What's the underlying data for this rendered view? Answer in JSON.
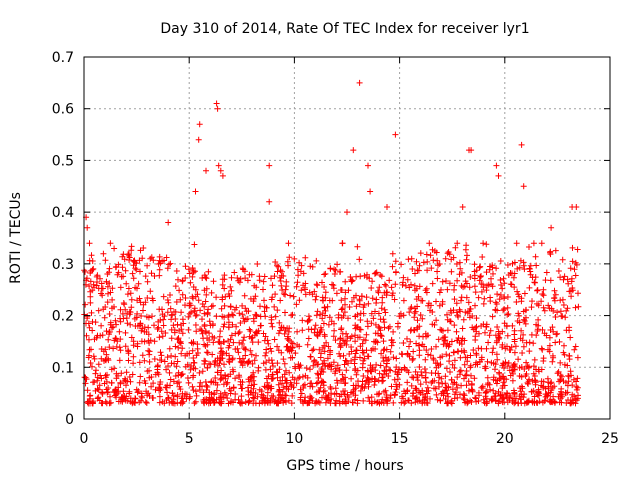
{
  "chart_data": {
    "type": "scatter",
    "title": "Day 310 of 2014, Rate Of TEC Index for receiver lyr1",
    "xlabel": "GPS time / hours",
    "ylabel": "ROTI / TECUs",
    "xlim": [
      0,
      25
    ],
    "ylim": [
      0,
      0.7
    ],
    "grid": true,
    "marker": "+",
    "color": "#ff0000",
    "x_ticks": [
      0,
      5,
      10,
      15,
      20,
      25
    ],
    "x_tick_labels": [
      "0",
      "5",
      "10",
      "15",
      "20",
      "25"
    ],
    "y_ticks": [
      0,
      0.1,
      0.2,
      0.3,
      0.4,
      0.5,
      0.6,
      0.7
    ],
    "y_tick_labels": [
      "0",
      "0.1",
      "0.2",
      "0.3",
      "0.4",
      "0.5",
      "0.6",
      "0.7"
    ],
    "series": [
      {
        "name": "ROTI",
        "x_range": [
          0,
          23.5
        ],
        "typical_range": [
          0.03,
          0.25
        ],
        "peaks": [
          {
            "x": 0.1,
            "y": 0.39
          },
          {
            "x": 0.15,
            "y": 0.37
          },
          {
            "x": 4.0,
            "y": 0.38
          },
          {
            "x": 5.3,
            "y": 0.44
          },
          {
            "x": 5.5,
            "y": 0.57
          },
          {
            "x": 5.45,
            "y": 0.54
          },
          {
            "x": 5.8,
            "y": 0.48
          },
          {
            "x": 6.3,
            "y": 0.61
          },
          {
            "x": 6.35,
            "y": 0.6
          },
          {
            "x": 6.4,
            "y": 0.49
          },
          {
            "x": 6.5,
            "y": 0.48
          },
          {
            "x": 6.6,
            "y": 0.47
          },
          {
            "x": 8.8,
            "y": 0.49
          },
          {
            "x": 8.8,
            "y": 0.42
          },
          {
            "x": 12.5,
            "y": 0.4
          },
          {
            "x": 12.8,
            "y": 0.52
          },
          {
            "x": 13.1,
            "y": 0.65
          },
          {
            "x": 13.5,
            "y": 0.49
          },
          {
            "x": 13.6,
            "y": 0.44
          },
          {
            "x": 14.4,
            "y": 0.41
          },
          {
            "x": 14.8,
            "y": 0.55
          },
          {
            "x": 18.0,
            "y": 0.41
          },
          {
            "x": 18.3,
            "y": 0.52
          },
          {
            "x": 18.4,
            "y": 0.52
          },
          {
            "x": 19.6,
            "y": 0.49
          },
          {
            "x": 19.7,
            "y": 0.47
          },
          {
            "x": 20.8,
            "y": 0.53
          },
          {
            "x": 20.9,
            "y": 0.45
          },
          {
            "x": 22.2,
            "y": 0.37
          },
          {
            "x": 23.2,
            "y": 0.41
          },
          {
            "x": 23.4,
            "y": 0.41
          }
        ]
      }
    ]
  }
}
